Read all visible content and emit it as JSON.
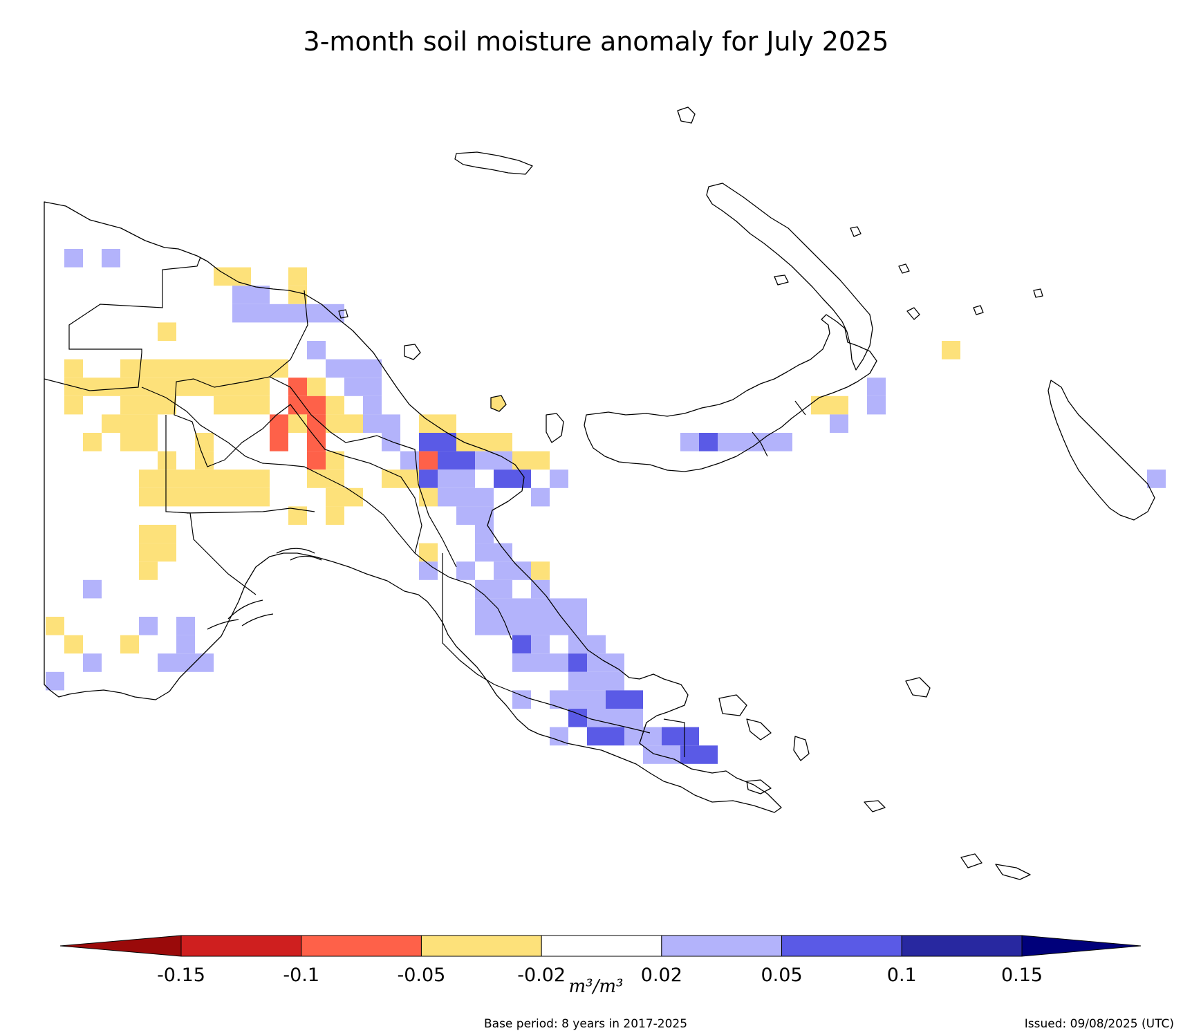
{
  "title": "3-month soil moisture anomaly for July 2025",
  "colorbar": {
    "unit_label": "m³/m³",
    "ticks": [
      "-0.15",
      "-0.1",
      "-0.05",
      "-0.02",
      "0.02",
      "0.05",
      "0.1",
      "0.15"
    ],
    "colors": [
      "#9a0a0a",
      "#cf1f1f",
      "#fe6149",
      "#fde17a",
      "#ffffff",
      "#b3b3fb",
      "#5a5ae6",
      "#2828a0",
      "#00007a"
    ]
  },
  "base_period": "Base period: 8 years in 2017-2025",
  "issued": "Issued: 09/08/2025 (UTC)",
  "anomaly_cells": [
    {
      "c": 1,
      "r": 0,
      "v": "w1"
    },
    {
      "c": 3,
      "r": 0,
      "v": "w1"
    },
    {
      "c": 9,
      "r": 1,
      "v": "d1"
    },
    {
      "c": 10,
      "r": 1,
      "v": "d1"
    },
    {
      "c": 13,
      "r": 1,
      "v": "d1"
    },
    {
      "c": 10,
      "r": 2,
      "v": "w1"
    },
    {
      "c": 11,
      "r": 2,
      "v": "w1"
    },
    {
      "c": 13,
      "r": 2,
      "v": "d1"
    },
    {
      "c": 10,
      "r": 3,
      "v": "w1"
    },
    {
      "c": 11,
      "r": 3,
      "v": "w1"
    },
    {
      "c": 12,
      "r": 3,
      "v": "w1"
    },
    {
      "c": 13,
      "r": 3,
      "v": "w1"
    },
    {
      "c": 14,
      "r": 3,
      "v": "w1"
    },
    {
      "c": 15,
      "r": 3,
      "v": "w1"
    },
    {
      "c": 6,
      "r": 4,
      "v": "d1"
    },
    {
      "c": 14,
      "r": 5,
      "v": "w1"
    },
    {
      "c": 1,
      "r": 6,
      "v": "d1"
    },
    {
      "c": 4,
      "r": 6,
      "v": "d1"
    },
    {
      "c": 5,
      "r": 6,
      "v": "d1"
    },
    {
      "c": 6,
      "r": 6,
      "v": "d1"
    },
    {
      "c": 7,
      "r": 6,
      "v": "d1"
    },
    {
      "c": 8,
      "r": 6,
      "v": "d1"
    },
    {
      "c": 9,
      "r": 6,
      "v": "d1"
    },
    {
      "c": 10,
      "r": 6,
      "v": "d1"
    },
    {
      "c": 11,
      "r": 6,
      "v": "d1"
    },
    {
      "c": 12,
      "r": 6,
      "v": "d1"
    },
    {
      "c": 15,
      "r": 6,
      "v": "w1"
    },
    {
      "c": 16,
      "r": 6,
      "v": "w1"
    },
    {
      "c": 17,
      "r": 6,
      "v": "w1"
    },
    {
      "c": 1,
      "r": 7,
      "v": "d1"
    },
    {
      "c": 2,
      "r": 7,
      "v": "d1"
    },
    {
      "c": 3,
      "r": 7,
      "v": "d1"
    },
    {
      "c": 4,
      "r": 7,
      "v": "d1"
    },
    {
      "c": 5,
      "r": 7,
      "v": "d1"
    },
    {
      "c": 6,
      "r": 7,
      "v": "d1"
    },
    {
      "c": 7,
      "r": 7,
      "v": "d1"
    },
    {
      "c": 8,
      "r": 7,
      "v": "d1"
    },
    {
      "c": 9,
      "r": 7,
      "v": "d1"
    },
    {
      "c": 10,
      "r": 7,
      "v": "d1"
    },
    {
      "c": 11,
      "r": 7,
      "v": "d1"
    },
    {
      "c": 13,
      "r": 7,
      "v": "d2"
    },
    {
      "c": 14,
      "r": 7,
      "v": "d1"
    },
    {
      "c": 16,
      "r": 7,
      "v": "w1"
    },
    {
      "c": 17,
      "r": 7,
      "v": "w1"
    },
    {
      "c": 44,
      "r": 7,
      "v": "w1"
    },
    {
      "c": 1,
      "r": 8,
      "v": "d1"
    },
    {
      "c": 4,
      "r": 8,
      "v": "d1"
    },
    {
      "c": 5,
      "r": 8,
      "v": "d1"
    },
    {
      "c": 6,
      "r": 8,
      "v": "d1"
    },
    {
      "c": 9,
      "r": 8,
      "v": "d1"
    },
    {
      "c": 10,
      "r": 8,
      "v": "d1"
    },
    {
      "c": 11,
      "r": 8,
      "v": "d1"
    },
    {
      "c": 13,
      "r": 8,
      "v": "d2"
    },
    {
      "c": 14,
      "r": 8,
      "v": "d2"
    },
    {
      "c": 15,
      "r": 8,
      "v": "d1"
    },
    {
      "c": 17,
      "r": 8,
      "v": "w1"
    },
    {
      "c": 44,
      "r": 8,
      "v": "w1"
    },
    {
      "c": 41,
      "r": 8,
      "v": "d1"
    },
    {
      "c": 42,
      "r": 8,
      "v": "d1"
    },
    {
      "c": 3,
      "r": 9,
      "v": "d1"
    },
    {
      "c": 4,
      "r": 9,
      "v": "d1"
    },
    {
      "c": 5,
      "r": 9,
      "v": "d1"
    },
    {
      "c": 12,
      "r": 9,
      "v": "d2"
    },
    {
      "c": 13,
      "r": 9,
      "v": "d1"
    },
    {
      "c": 14,
      "r": 9,
      "v": "d2"
    },
    {
      "c": 15,
      "r": 9,
      "v": "d1"
    },
    {
      "c": 16,
      "r": 9,
      "v": "d1"
    },
    {
      "c": 17,
      "r": 9,
      "v": "w1"
    },
    {
      "c": 18,
      "r": 9,
      "v": "w1"
    },
    {
      "c": 20,
      "r": 9,
      "v": "d1"
    },
    {
      "c": 21,
      "r": 9,
      "v": "d1"
    },
    {
      "c": 42,
      "r": 9,
      "v": "w1"
    },
    {
      "c": 2,
      "r": 10,
      "v": "d1"
    },
    {
      "c": 4,
      "r": 10,
      "v": "d1"
    },
    {
      "c": 5,
      "r": 10,
      "v": "d1"
    },
    {
      "c": 8,
      "r": 10,
      "v": "d1"
    },
    {
      "c": 12,
      "r": 10,
      "v": "d2"
    },
    {
      "c": 14,
      "r": 10,
      "v": "d2"
    },
    {
      "c": 18,
      "r": 10,
      "v": "w1"
    },
    {
      "c": 20,
      "r": 10,
      "v": "w2"
    },
    {
      "c": 21,
      "r": 10,
      "v": "w2"
    },
    {
      "c": 22,
      "r": 10,
      "v": "d1"
    },
    {
      "c": 23,
      "r": 10,
      "v": "d1"
    },
    {
      "c": 24,
      "r": 10,
      "v": "d1"
    },
    {
      "c": 34,
      "r": 10,
      "v": "w1"
    },
    {
      "c": 35,
      "r": 10,
      "v": "w2"
    },
    {
      "c": 36,
      "r": 10,
      "v": "w1"
    },
    {
      "c": 37,
      "r": 10,
      "v": "w1"
    },
    {
      "c": 38,
      "r": 10,
      "v": "w1"
    },
    {
      "c": 39,
      "r": 10,
      "v": "w1"
    },
    {
      "c": 6,
      "r": 11,
      "v": "d1"
    },
    {
      "c": 8,
      "r": 11,
      "v": "d1"
    },
    {
      "c": 14,
      "r": 11,
      "v": "d2"
    },
    {
      "c": 15,
      "r": 11,
      "v": "d1"
    },
    {
      "c": 19,
      "r": 11,
      "v": "w1"
    },
    {
      "c": 20,
      "r": 11,
      "v": "d2"
    },
    {
      "c": 21,
      "r": 11,
      "v": "w2"
    },
    {
      "c": 22,
      "r": 11,
      "v": "w2"
    },
    {
      "c": 23,
      "r": 11,
      "v": "w1"
    },
    {
      "c": 24,
      "r": 11,
      "v": "w1"
    },
    {
      "c": 25,
      "r": 11,
      "v": "d1"
    },
    {
      "c": 26,
      "r": 11,
      "v": "d1"
    },
    {
      "c": 5,
      "r": 12,
      "v": "d1"
    },
    {
      "c": 6,
      "r": 12,
      "v": "d1"
    },
    {
      "c": 7,
      "r": 12,
      "v": "d1"
    },
    {
      "c": 8,
      "r": 12,
      "v": "d1"
    },
    {
      "c": 9,
      "r": 12,
      "v": "d1"
    },
    {
      "c": 10,
      "r": 12,
      "v": "d1"
    },
    {
      "c": 11,
      "r": 12,
      "v": "d1"
    },
    {
      "c": 14,
      "r": 12,
      "v": "d1"
    },
    {
      "c": 15,
      "r": 12,
      "v": "d1"
    },
    {
      "c": 18,
      "r": 12,
      "v": "d1"
    },
    {
      "c": 19,
      "r": 12,
      "v": "d1"
    },
    {
      "c": 20,
      "r": 12,
      "v": "w2"
    },
    {
      "c": 21,
      "r": 12,
      "v": "w1"
    },
    {
      "c": 22,
      "r": 12,
      "v": "w1"
    },
    {
      "c": 24,
      "r": 12,
      "v": "w2"
    },
    {
      "c": 25,
      "r": 12,
      "v": "w2"
    },
    {
      "c": 27,
      "r": 12,
      "v": "w1"
    },
    {
      "c": 59,
      "r": 12,
      "v": "w1"
    },
    {
      "c": 5,
      "r": 13,
      "v": "d1"
    },
    {
      "c": 6,
      "r": 13,
      "v": "d1"
    },
    {
      "c": 7,
      "r": 13,
      "v": "d1"
    },
    {
      "c": 8,
      "r": 13,
      "v": "d1"
    },
    {
      "c": 9,
      "r": 13,
      "v": "d1"
    },
    {
      "c": 10,
      "r": 13,
      "v": "d1"
    },
    {
      "c": 11,
      "r": 13,
      "v": "d1"
    },
    {
      "c": 15,
      "r": 13,
      "v": "d1"
    },
    {
      "c": 16,
      "r": 13,
      "v": "d1"
    },
    {
      "c": 20,
      "r": 13,
      "v": "d1"
    },
    {
      "c": 21,
      "r": 13,
      "v": "w1"
    },
    {
      "c": 22,
      "r": 13,
      "v": "w1"
    },
    {
      "c": 23,
      "r": 13,
      "v": "w1"
    },
    {
      "c": 26,
      "r": 13,
      "v": "w1"
    },
    {
      "c": 13,
      "r": 14,
      "v": "d1"
    },
    {
      "c": 15,
      "r": 14,
      "v": "d1"
    },
    {
      "c": 22,
      "r": 14,
      "v": "w1"
    },
    {
      "c": 23,
      "r": 14,
      "v": "w1"
    },
    {
      "c": 5,
      "r": 15,
      "v": "d1"
    },
    {
      "c": 6,
      "r": 15,
      "v": "d1"
    },
    {
      "c": 23,
      "r": 15,
      "v": "w1"
    },
    {
      "c": 5,
      "r": 16,
      "v": "d1"
    },
    {
      "c": 6,
      "r": 16,
      "v": "d1"
    },
    {
      "c": 20,
      "r": 16,
      "v": "d1"
    },
    {
      "c": 23,
      "r": 16,
      "v": "w1"
    },
    {
      "c": 24,
      "r": 16,
      "v": "w1"
    },
    {
      "c": 5,
      "r": 17,
      "v": "d1"
    },
    {
      "c": 20,
      "r": 17,
      "v": "w1"
    },
    {
      "c": 22,
      "r": 17,
      "v": "w1"
    },
    {
      "c": 24,
      "r": 17,
      "v": "w1"
    },
    {
      "c": 25,
      "r": 17,
      "v": "w1"
    },
    {
      "c": 26,
      "r": 17,
      "v": "d1"
    },
    {
      "c": 2,
      "r": 18,
      "v": "w1"
    },
    {
      "c": 23,
      "r": 18,
      "v": "w1"
    },
    {
      "c": 24,
      "r": 18,
      "v": "w1"
    },
    {
      "c": 26,
      "r": 18,
      "v": "w1"
    },
    {
      "c": 23,
      "r": 19,
      "v": "w1"
    },
    {
      "c": 24,
      "r": 19,
      "v": "w1"
    },
    {
      "c": 25,
      "r": 19,
      "v": "w1"
    },
    {
      "c": 26,
      "r": 19,
      "v": "w1"
    },
    {
      "c": 27,
      "r": 19,
      "v": "w1"
    },
    {
      "c": 28,
      "r": 19,
      "v": "w1"
    },
    {
      "c": 0,
      "r": 20,
      "v": "d1"
    },
    {
      "c": 5,
      "r": 20,
      "v": "w1"
    },
    {
      "c": 7,
      "r": 20,
      "v": "w1"
    },
    {
      "c": 23,
      "r": 20,
      "v": "w1"
    },
    {
      "c": 24,
      "r": 20,
      "v": "w1"
    },
    {
      "c": 25,
      "r": 20,
      "v": "w1"
    },
    {
      "c": 26,
      "r": 20,
      "v": "w1"
    },
    {
      "c": 27,
      "r": 20,
      "v": "w1"
    },
    {
      "c": 28,
      "r": 20,
      "v": "w1"
    },
    {
      "c": 1,
      "r": 21,
      "v": "d1"
    },
    {
      "c": 4,
      "r": 21,
      "v": "d1"
    },
    {
      "c": 7,
      "r": 21,
      "v": "w1"
    },
    {
      "c": 25,
      "r": 21,
      "v": "w2"
    },
    {
      "c": 26,
      "r": 21,
      "v": "w1"
    },
    {
      "c": 28,
      "r": 21,
      "v": "w1"
    },
    {
      "c": 29,
      "r": 21,
      "v": "w1"
    },
    {
      "c": 2,
      "r": 22,
      "v": "w1"
    },
    {
      "c": 6,
      "r": 22,
      "v": "w1"
    },
    {
      "c": 7,
      "r": 22,
      "v": "w1"
    },
    {
      "c": 8,
      "r": 22,
      "v": "w1"
    },
    {
      "c": 25,
      "r": 22,
      "v": "w1"
    },
    {
      "c": 26,
      "r": 22,
      "v": "w1"
    },
    {
      "c": 27,
      "r": 22,
      "v": "w1"
    },
    {
      "c": 28,
      "r": 22,
      "v": "w2"
    },
    {
      "c": 29,
      "r": 22,
      "v": "w1"
    },
    {
      "c": 30,
      "r": 22,
      "v": "w1"
    },
    {
      "c": 0,
      "r": 23,
      "v": "w1"
    },
    {
      "c": 28,
      "r": 23,
      "v": "w1"
    },
    {
      "c": 29,
      "r": 23,
      "v": "w1"
    },
    {
      "c": 30,
      "r": 23,
      "v": "w1"
    },
    {
      "c": 25,
      "r": 24,
      "v": "w1"
    },
    {
      "c": 27,
      "r": 24,
      "v": "w1"
    },
    {
      "c": 28,
      "r": 24,
      "v": "w1"
    },
    {
      "c": 29,
      "r": 24,
      "v": "w1"
    },
    {
      "c": 30,
      "r": 24,
      "v": "w2"
    },
    {
      "c": 31,
      "r": 24,
      "v": "w2"
    },
    {
      "c": 28,
      "r": 25,
      "v": "w2"
    },
    {
      "c": 29,
      "r": 25,
      "v": "w1"
    },
    {
      "c": 30,
      "r": 25,
      "v": "w1"
    },
    {
      "c": 31,
      "r": 25,
      "v": "w1"
    },
    {
      "c": 27,
      "r": 26,
      "v": "w1"
    },
    {
      "c": 29,
      "r": 26,
      "v": "w2"
    },
    {
      "c": 30,
      "r": 26,
      "v": "w2"
    },
    {
      "c": 31,
      "r": 26,
      "v": "w1"
    },
    {
      "c": 32,
      "r": 26,
      "v": "w1"
    },
    {
      "c": 33,
      "r": 26,
      "v": "w2"
    },
    {
      "c": 34,
      "r": 26,
      "v": "w2"
    },
    {
      "c": 32,
      "r": 27,
      "v": "w1"
    },
    {
      "c": 33,
      "r": 27,
      "v": "w1"
    },
    {
      "c": 34,
      "r": 27,
      "v": "w2"
    },
    {
      "c": 35,
      "r": 27,
      "v": "w2"
    },
    {
      "c": 48,
      "r": 5,
      "v": "d1"
    }
  ]
}
